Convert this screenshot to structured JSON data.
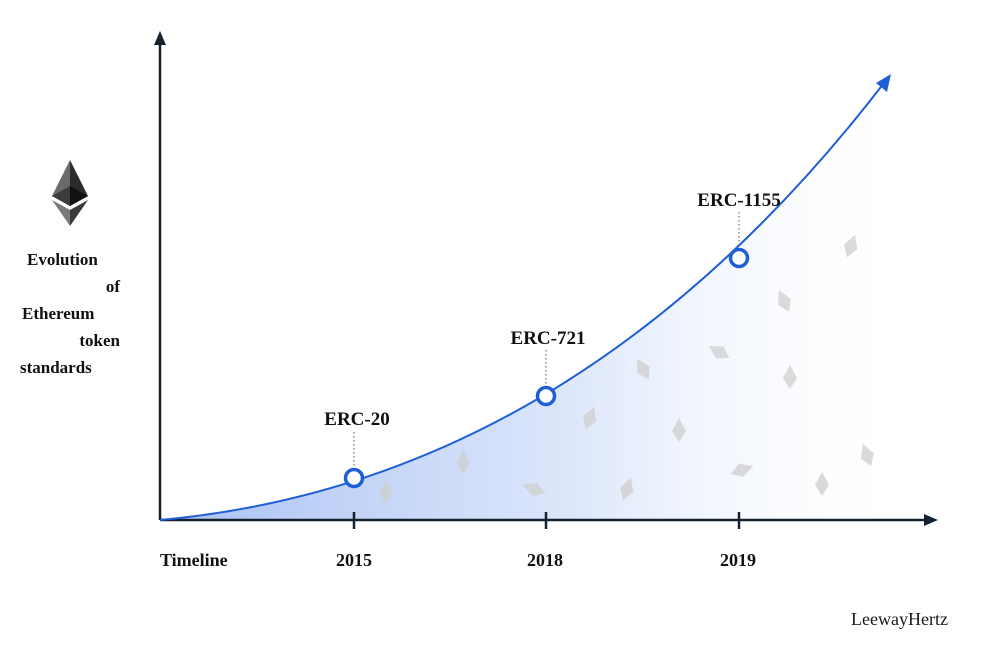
{
  "y_axis_title_lines": [
    "Evolution",
    "of",
    "Ethereum",
    "token",
    "standards"
  ],
  "x_axis_label": "Timeline",
  "milestones": [
    {
      "year": "2015",
      "standard": "ERC-20"
    },
    {
      "year": "2018",
      "standard": "ERC-721"
    },
    {
      "year": "2019",
      "standard": "ERC-1155"
    }
  ],
  "brand": "LeewayHertz",
  "colors": {
    "curve": "#1f5fd6",
    "fill_start": "#a9c1f3",
    "axis": "#15222e",
    "text": "#111111",
    "logo_dark": "#2b2b2b"
  },
  "icons": {
    "logo": "ethereum-logo-icon",
    "background": "ethereum-diamond-icon"
  }
}
